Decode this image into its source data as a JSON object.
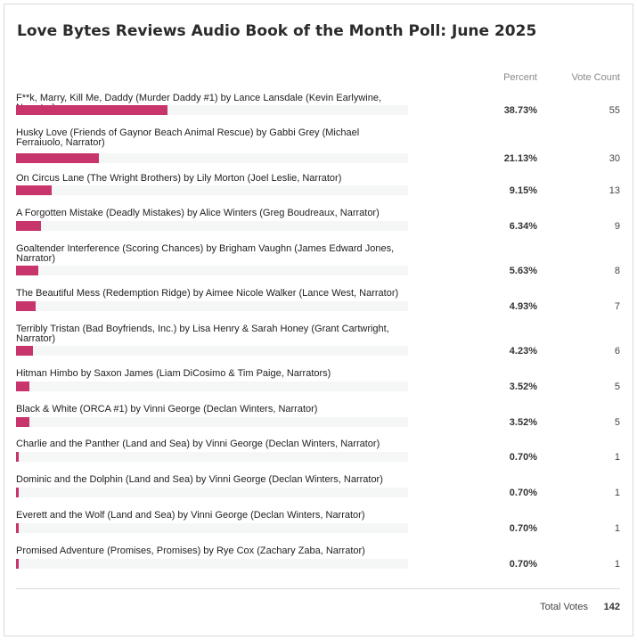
{
  "chart_data": {
    "type": "bar",
    "title": "Love Bytes Reviews Audio Book of the Month Poll: June 2025",
    "columns": {
      "percent": "Percent",
      "votes": "Vote Count"
    },
    "categories": [
      "F**k, Marry, Kill Me, Daddy (Murder Daddy #1) by Lance Lansdale (Kevin Earlywine, Narrator)",
      "Husky Love (Friends of Gaynor Beach Animal Rescue) by Gabbi Grey (Michael Ferraiuolo, Narrator)",
      "On Circus Lane (The Wright Brothers) by Lily Morton (Joel Leslie, Narrator)",
      "A Forgotten Mistake (Deadly Mistakes) by Alice Winters (Greg Boudreaux, Narrator)",
      "Goaltender Interference (Scoring Chances) by Brigham Vaughn (James Edward Jones, Narrator)",
      "The Beautiful Mess (Redemption Ridge) by Aimee Nicole Walker (Lance West, Narrator)",
      "Terribly Tristan (Bad Boyfriends, Inc.) by Lisa Henry & Sarah Honey (Grant Cartwright, Narrator)",
      "Hitman Himbo by Saxon James (Liam DiCosimo & Tim Paige, Narrators)",
      "Black & White (ORCA #1) by Vinni George (Declan Winters, Narrator)",
      "Charlie and the Panther (Land and Sea) by Vinni George (Declan Winters, Narrator)",
      "Dominic and the Dolphin (Land and Sea) by Vinni George (Declan Winters, Narrator)",
      "Everett and the Wolf (Land and Sea) by Vinni George (Declan Winters, Narrator)",
      "Promised Adventure (Promises, Promises) by Rye Cox (Zachary Zaba, Narrator)"
    ],
    "percent_labels": [
      "38.73%",
      "21.13%",
      "9.15%",
      "6.34%",
      "5.63%",
      "4.93%",
      "4.23%",
      "3.52%",
      "3.52%",
      "0.70%",
      "0.70%",
      "0.70%",
      "0.70%"
    ],
    "values": [
      38.73,
      21.13,
      9.15,
      6.34,
      5.63,
      4.93,
      4.23,
      3.52,
      3.52,
      0.7,
      0.7,
      0.7,
      0.7
    ],
    "votes": [
      "55",
      "30",
      "13",
      "9",
      "8",
      "7",
      "6",
      "5",
      "5",
      "1",
      "1",
      "1",
      "1"
    ],
    "xlim": [
      0,
      100
    ],
    "bar_color": "#c8346c",
    "track_color": "#f5f6f6",
    "total_label": "Total Votes",
    "total_value": "142"
  }
}
